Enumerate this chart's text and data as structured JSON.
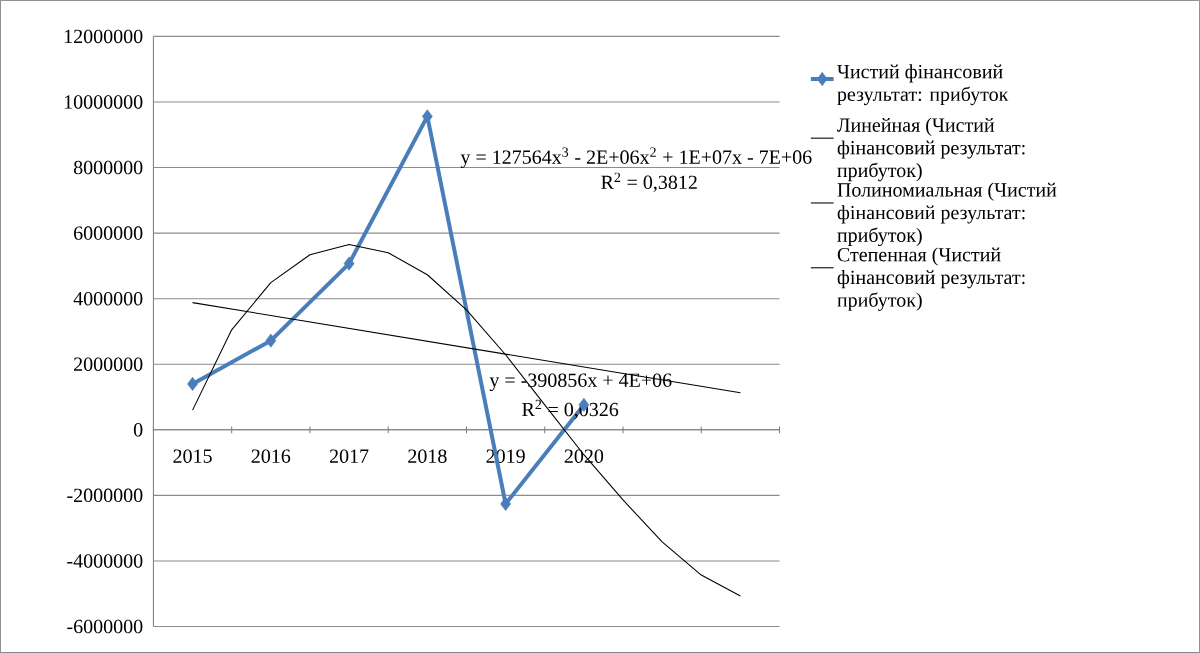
{
  "chart_data": {
    "type": "line",
    "x": [
      2015,
      2016,
      2017,
      2018,
      2019,
      2020
    ],
    "xlim": [
      2014.5,
      2022.5
    ],
    "xticks": [
      2015,
      2016,
      2017,
      2018,
      2019,
      2020
    ],
    "ylim": [
      -6000000,
      12000000
    ],
    "yticks": [
      -6000000,
      -4000000,
      -2000000,
      0,
      2000000,
      4000000,
      6000000,
      8000000,
      10000000,
      12000000
    ],
    "grid": "y",
    "legend": "right",
    "marker": "diamond",
    "series": [
      {
        "name": "Чистий фінансовий результат: прибуток",
        "color": "#4a7ebb",
        "values": [
          1400000,
          2720000,
          5070000,
          9560000,
          -2260000,
          760000
        ]
      },
      {
        "name": "Линейная (Чистий фінансовий результат: прибуток)",
        "color": "#000000",
        "marker": "none",
        "x": [
          2015,
          2022
        ],
        "values": [
          3880000,
          1130000
        ]
      },
      {
        "name": "Полиномиальная (Чистий фінансовий результат: прибуток)",
        "color": "#000000",
        "marker": "none",
        "x": [
          2015,
          2015.5,
          2016,
          2016.5,
          2017,
          2017.5,
          2018,
          2018.5,
          2019,
          2019.5,
          2020,
          2020.5,
          2021,
          2021.5,
          2022
        ],
        "values": [
          600000,
          3050000,
          4490000,
          5340000,
          5650000,
          5400000,
          4730000,
          3660000,
          2290000,
          760000,
          -760000,
          -2140000,
          -3420000,
          -4430000,
          -5070000
        ]
      },
      {
        "name": "Степенная (Чистий фінансовий результат: прибуток)",
        "color": "#000000",
        "marker": "none",
        "values": [
          null,
          null,
          null,
          null,
          null,
          null
        ]
      }
    ],
    "annotations": [
      "y = 127564x$^{3}$ - 2E+06x$^{2}$ + 1E+07x - 7E+06",
      "R$^{2}$ = 0,3812",
      "y = -390856x + 4E+06",
      "R$^{2}$ = 0,0326"
    ]
  }
}
